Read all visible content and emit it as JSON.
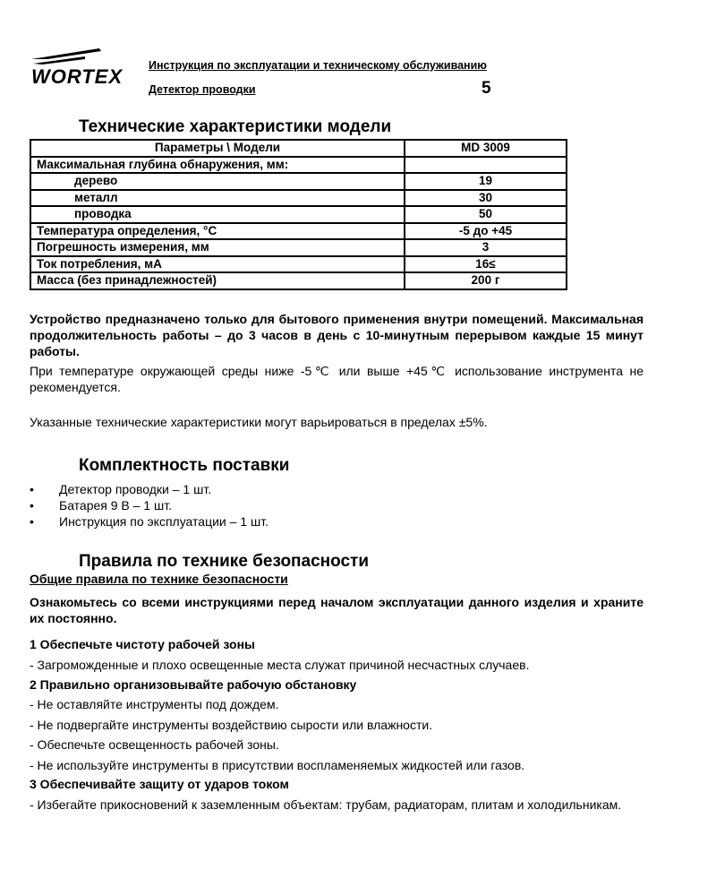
{
  "header": {
    "logo": "WORTEX",
    "title": "Инструкция по эксплуатации и техническому обслуживанию",
    "subtitle": "Детектор проводки",
    "page_number": "5"
  },
  "specs": {
    "title": "Технические характеристики модели",
    "columns": [
      "Параметры \\ Модели",
      "MD 3009"
    ],
    "rows": [
      {
        "param": "Максимальная глубина обнаружения, мм:",
        "value": ""
      },
      {
        "param": "дерево",
        "value": "19"
      },
      {
        "param": "металл",
        "value": "30"
      },
      {
        "param": "проводка",
        "value": "50"
      },
      {
        "param": "Температура определения, °C",
        "value": "-5 до +45"
      },
      {
        "param": "Погрешность измерения, мм",
        "value": "3"
      },
      {
        "param": "Ток потребления, мА",
        "value": "16≤"
      },
      {
        "param": "Масса (без принадлежностей)",
        "value": "200 г"
      }
    ],
    "note_bold": "Устройство предназначено только для бытового применения внутри помещений. Максимальная продолжительность работы – до 3 часов в день с 10-минутным перерывом каждые 15 минут работы.",
    "note_temp": "При температуре окружающей среды ниже -5℃ или выше +45℃ использование инструмента не рекомендуется.",
    "note_var": "Указанные технические характеристики могут варьироваться в пределах ±5%."
  },
  "package": {
    "title": "Комплектность поставки",
    "items": [
      "Детектор проводки – 1 шт.",
      "Батарея 9 В – 1 шт.",
      "Инструкция по эксплуатации – 1 шт."
    ]
  },
  "safety": {
    "title": "Правила по технике безопасности",
    "subtitle": "Общие правила по технике безопасности",
    "intro": "Ознакомьтесь со всеми инструкциями перед началом эксплуатации данного изделия и храните их постоянно.",
    "s1": "1 Обеспечьте чистоту рабочей зоны",
    "s1_items": [
      "- Загроможденные и плохо освещенные места служат причиной несчастных случаев."
    ],
    "s2": "2 Правильно организовывайте рабочую обстановку",
    "s2_items": [
      "- Не оставляйте инструменты под дождем.",
      "- Не подвергайте инструменты воздействию сырости или влажности.",
      "- Обеспечьте освещенность рабочей зоны.",
      "- Не используйте инструменты в присутствии воспламеняемых жидкостей или газов."
    ],
    "s3": "3 Обеспечивайте защиту от ударов током",
    "s3_items": [
      "- Избегайте прикосновений к заземленным объектам: трубам, радиаторам, плитам и холодильникам."
    ]
  }
}
